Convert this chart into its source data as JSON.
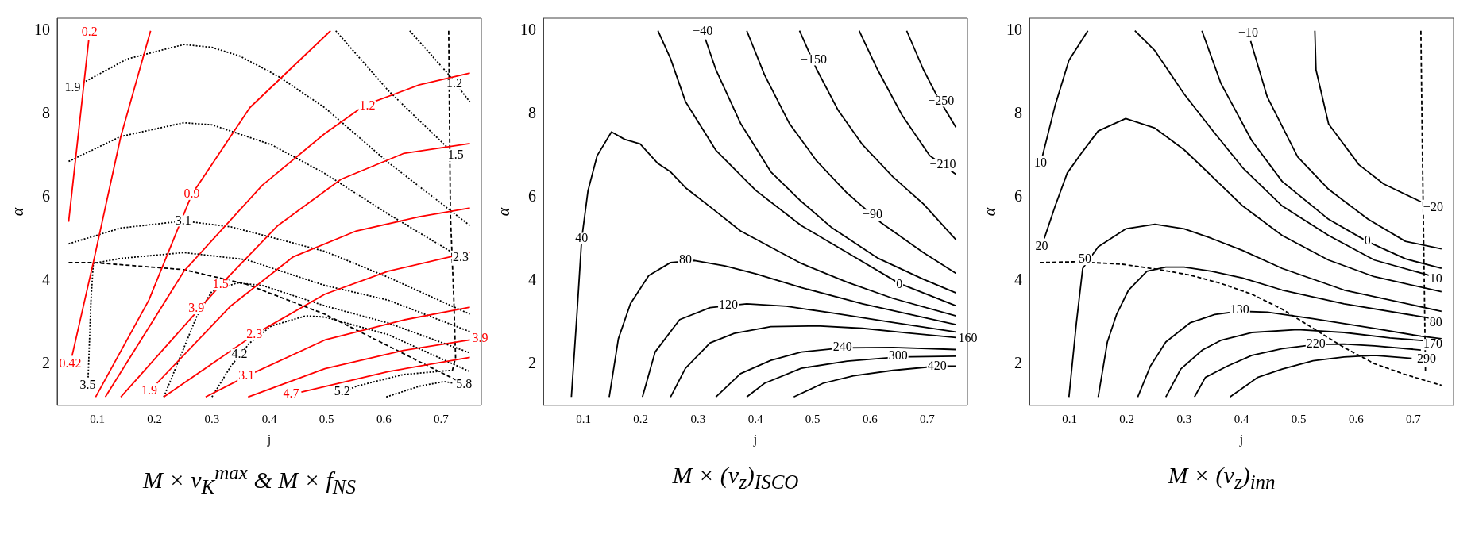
{
  "chart_data": [
    {
      "type": "line",
      "title": "M × ν$_{K}$$^{max}$ & M × f$_{NS}$",
      "xlabel": "j",
      "ylabel": "α",
      "xlim": [
        0.03,
        0.77
      ],
      "ylim": [
        1,
        10.3
      ],
      "xticks": [
        0.1,
        0.2,
        0.3,
        0.4,
        0.5,
        0.6,
        0.7
      ],
      "yticks": [
        2,
        4,
        6,
        8,
        10
      ],
      "series": [
        {
          "type": "line",
          "color": "#ff0000",
          "line_style": "solid",
          "x": [
            0.05,
            0.085
          ],
          "values": [
            5.41,
            9.77
          ]
        },
        {
          "type": "line",
          "color": "#ff0000",
          "line_style": "solid",
          "x": [
            0.056,
            0.093,
            0.141,
            0.193
          ],
          "values": [
            2.19,
            4.43,
            7.46,
            10
          ]
        },
        {
          "type": "line",
          "color": "#ff0000",
          "line_style": "solid",
          "x": [
            0.097,
            0.19,
            0.265,
            0.366,
            0.507
          ],
          "values": [
            1.2,
            3.53,
            6.07,
            8.15,
            10
          ]
        },
        {
          "type": "line",
          "color": "#ff0000",
          "line_style": "solid",
          "x": [
            0.114,
            0.251,
            0.388,
            0.497,
            0.568,
            0.662,
            0.75
          ],
          "values": [
            1.2,
            4.22,
            6.29,
            7.53,
            8.22,
            8.7,
            8.98
          ]
        },
        {
          "type": "line",
          "color": "#ff0000",
          "line_style": "solid",
          "x": [
            0.141,
            0.315,
            0.415,
            0.525,
            0.634,
            0.75
          ],
          "values": [
            1.2,
            3.89,
            5.32,
            6.43,
            7.05,
            7.29
          ]
        },
        {
          "type": "line",
          "color": "#ff0000",
          "line_style": "solid",
          "x": [
            0.204,
            0.333,
            0.442,
            0.552,
            0.662,
            0.75
          ],
          "values": [
            1.53,
            3.39,
            4.57,
            5.19,
            5.53,
            5.74
          ]
        },
        {
          "type": "line",
          "color": "#ff0000",
          "line_style": "solid",
          "x": [
            0.216,
            0.374,
            0.497,
            0.607,
            0.75
          ],
          "values": [
            1.2,
            2.7,
            3.67,
            4.22,
            4.68
          ]
        },
        {
          "type": "line",
          "color": "#ff0000",
          "line_style": "solid",
          "x": [
            0.289,
            0.36,
            0.497,
            0.634,
            0.75
          ],
          "values": [
            1.2,
            1.7,
            2.57,
            3.05,
            3.36
          ]
        },
        {
          "type": "line",
          "color": "#ff0000",
          "line_style": "solid",
          "x": [
            0.363,
            0.497,
            0.634,
            0.75
          ],
          "values": [
            1.2,
            1.88,
            2.32,
            2.57
          ]
        },
        {
          "type": "line",
          "color": "#ff0000",
          "line_style": "solid",
          "x": [
            0.456,
            0.607,
            0.75
          ],
          "values": [
            1.32,
            1.81,
            2.15
          ]
        },
        {
          "type": "line",
          "color": "#000000",
          "line_style": "dotted",
          "x": [
            0.645,
            0.711,
            0.75
          ],
          "values": [
            10,
            8.98,
            8.29
          ]
        },
        {
          "type": "line",
          "color": "#000000",
          "line_style": "dotted",
          "x": [
            0.516,
            0.607,
            0.711
          ],
          "values": [
            10,
            8.57,
            7.19
          ]
        },
        {
          "type": "line",
          "color": "#000000",
          "line_style": "dotted",
          "x": [
            0.075,
            0.152,
            0.251,
            0.3,
            0.349,
            0.415,
            0.497,
            0.607,
            0.75
          ],
          "values": [
            8.75,
            9.32,
            9.67,
            9.6,
            9.39,
            8.91,
            8.15,
            6.84,
            5.32
          ]
        },
        {
          "type": "line",
          "color": "#000000",
          "line_style": "dotted",
          "x": [
            0.05,
            0.141,
            0.251,
            0.3,
            0.404,
            0.497,
            0.607,
            0.716
          ],
          "values": [
            6.86,
            7.46,
            7.79,
            7.74,
            7.26,
            6.57,
            5.6,
            4.7
          ]
        },
        {
          "type": "line",
          "color": "#000000",
          "line_style": "dotted",
          "x": [
            0.05,
            0.141,
            0.251,
            0.333,
            0.497,
            0.607,
            0.75
          ],
          "values": [
            4.88,
            5.26,
            5.43,
            5.29,
            4.7,
            4.08,
            3.19
          ]
        },
        {
          "type": "line",
          "color": "#000000",
          "line_style": "dotted",
          "x": [
            0.084,
            0.089,
            0.093,
            0.141,
            0.251,
            0.36,
            0.497,
            0.607,
            0.75
          ],
          "values": [
            1.67,
            3.53,
            4.41,
            4.53,
            4.67,
            4.5,
            3.88,
            3.53,
            2.77
          ]
        },
        {
          "type": "line",
          "color": "#000000",
          "line_style": "dotted",
          "x": [
            0.216,
            0.273,
            0.3,
            0.344,
            0.388,
            0.497,
            0.607,
            0.75
          ],
          "values": [
            1.2,
            3.12,
            3.74,
            3.94,
            3.88,
            3.39,
            2.98,
            2.26
          ]
        },
        {
          "type": "line",
          "color": "#000000",
          "line_style": "dotted",
          "x": [
            0.3,
            0.333,
            0.366,
            0.404,
            0.464,
            0.497,
            0.607,
            0.75
          ],
          "values": [
            1.2,
            1.94,
            2.5,
            2.91,
            3.15,
            3.12,
            2.7,
            1.81
          ]
        },
        {
          "type": "line",
          "color": "#000000",
          "line_style": "dotted",
          "x": [
            0.514,
            0.552,
            0.634,
            0.716
          ],
          "values": [
            1.22,
            1.46,
            1.74,
            1.84
          ]
        },
        {
          "type": "line",
          "color": "#000000",
          "line_style": "dotted",
          "x": [
            0.604,
            0.662,
            0.705,
            0.722
          ],
          "values": [
            1.2,
            1.46,
            1.57,
            1.53
          ]
        },
        {
          "type": "line",
          "color": "#000000",
          "line_style": "dashed",
          "x": [
            0.05,
            0.093,
            0.251,
            0.36,
            0.497,
            0.607,
            0.727
          ],
          "values": [
            4.43,
            4.43,
            4.26,
            3.91,
            3.19,
            2.43,
            1.6
          ]
        },
        {
          "type": "line",
          "color": "#000000",
          "line_style": "dashed",
          "x": [
            0.713,
            0.716,
            0.722,
            0.725,
            0.719
          ],
          "values": [
            10,
            5.6,
            3.53,
            2.15,
            1.81
          ]
        }
      ],
      "annotations": [
        {
          "text": "0.2",
          "x": 0.085,
          "y": 9.77
        },
        {
          "text": "0.42",
          "x": 0.056,
          "y": 2.19
        },
        {
          "text": "0.9",
          "x": 0.265,
          "y": 6.07
        },
        {
          "text": "1.2",
          "x": 0.571,
          "y": 8.19
        },
        {
          "text": "1.5",
          "x": 0.315,
          "y": 3.89
        },
        {
          "text": "1.9",
          "x": 0.204,
          "y": 1.53
        },
        {
          "text": "2.3",
          "x": 0.374,
          "y": 2.7
        },
        {
          "text": "3.1",
          "x": 0.36,
          "y": 1.7
        },
        {
          "text": "3.9",
          "x": 0.75,
          "y": 2.57
        },
        {
          "text": "4.7",
          "x": 0.456,
          "y": 1.32
        },
        {
          "text": "1.9",
          "x": 0.075,
          "y": 8.75
        },
        {
          "text": "3.1",
          "x": 0.25,
          "y": 5.43
        },
        {
          "text": "3.5",
          "x": 0.084,
          "y": 1.67
        },
        {
          "text": "3.9",
          "x": 0.273,
          "y": 3.32
        },
        {
          "text": "4.2",
          "x": 0.348,
          "y": 2.22
        },
        {
          "text": "5.2",
          "x": 0.527,
          "y": 1.32
        },
        {
          "text": "5.8",
          "x": 0.722,
          "y": 1.53
        },
        {
          "text": "1.2",
          "x": 0.723,
          "y": 8.72
        },
        {
          "text": "1.5",
          "x": 0.711,
          "y": 7.19
        },
        {
          "text": "2.3",
          "x": 0.716,
          "y": 4.7
        }
      ]
    },
    {
      "type": "line",
      "title": "M × (ν$_{z}$)$_{ISCO}$",
      "xlabel": "j",
      "ylabel": "α",
      "xlim": [
        0.03,
        0.77
      ],
      "ylim": [
        1,
        10.3
      ],
      "xticks": [
        0.1,
        0.2,
        0.3,
        0.4,
        0.5,
        0.6,
        0.7
      ],
      "yticks": [
        2,
        4,
        6,
        8,
        10
      ],
      "series": [
        {
          "type": "line",
          "color": "#000000",
          "line_style": "solid",
          "x": [
            0.664,
            0.693,
            0.717,
            0.75
          ],
          "values": [
            10,
            9.07,
            8.43,
            7.68
          ]
        },
        {
          "type": "line",
          "color": "#000000",
          "line_style": "solid",
          "x": [
            0.581,
            0.613,
            0.656,
            0.704,
            0.75
          ],
          "values": [
            10,
            9.07,
            7.97,
            7.0,
            6.55
          ]
        },
        {
          "type": "line",
          "color": "#000000",
          "line_style": "solid",
          "x": [
            0.477,
            0.507,
            0.544,
            0.587,
            0.64,
            0.693,
            0.75
          ],
          "values": [
            10,
            9.07,
            8.1,
            7.26,
            6.49,
            5.84,
            4.98
          ]
        },
        {
          "type": "line",
          "color": "#000000",
          "line_style": "solid",
          "x": [
            0.385,
            0.416,
            0.459,
            0.507,
            0.56,
            0.619,
            0.693,
            0.75
          ],
          "values": [
            10,
            8.94,
            7.78,
            6.87,
            6.1,
            5.39,
            4.67,
            4.17
          ]
        },
        {
          "type": "line",
          "color": "#000000",
          "line_style": "solid",
          "x": [
            0.313,
            0.331,
            0.374,
            0.427,
            0.48,
            0.534,
            0.613,
            0.693,
            0.75
          ],
          "values": [
            9.79,
            9.07,
            7.78,
            6.61,
            5.9,
            5.26,
            4.54,
            4.03,
            3.7
          ]
        },
        {
          "type": "line",
          "color": "#000000",
          "line_style": "solid",
          "x": [
            0.23,
            0.252,
            0.278,
            0.331,
            0.401,
            0.48,
            0.56,
            0.651,
            0.75
          ],
          "values": [
            10,
            9.33,
            8.3,
            7.13,
            6.16,
            5.32,
            4.67,
            3.93,
            3.39
          ]
        },
        {
          "type": "line",
          "color": "#000000",
          "line_style": "solid",
          "x": [
            0.079,
            0.089,
            0.097,
            0.108,
            0.124,
            0.149,
            0.172,
            0.199,
            0.23,
            0.252,
            0.278,
            0.321,
            0.374,
            0.427,
            0.48,
            0.56,
            0.64,
            0.75
          ],
          "values": [
            1.2,
            3.25,
            5.0,
            6.16,
            7.0,
            7.57,
            7.39,
            7.28,
            6.81,
            6.61,
            6.23,
            5.77,
            5.19,
            4.8,
            4.41,
            3.96,
            3.57,
            3.15
          ]
        },
        {
          "type": "line",
          "color": "#000000",
          "line_style": "solid",
          "x": [
            0.145,
            0.161,
            0.182,
            0.214,
            0.252,
            0.294,
            0.347,
            0.401,
            0.48,
            0.587,
            0.75
          ],
          "values": [
            1.2,
            2.6,
            3.44,
            4.12,
            4.43,
            4.48,
            4.35,
            4.16,
            3.83,
            3.44,
            2.94
          ]
        },
        {
          "type": "line",
          "color": "#000000",
          "line_style": "solid",
          "x": [
            0.203,
            0.225,
            0.268,
            0.321,
            0.385,
            0.454,
            0.534,
            0.64,
            0.75
          ],
          "values": [
            1.2,
            2.28,
            3.06,
            3.35,
            3.44,
            3.38,
            3.22,
            2.99,
            2.76
          ]
        },
        {
          "type": "line",
          "color": "#000000",
          "line_style": "solid",
          "x": [
            0.252,
            0.278,
            0.321,
            0.363,
            0.427,
            0.507,
            0.587,
            0.666,
            0.75
          ],
          "values": [
            1.2,
            1.89,
            2.5,
            2.73,
            2.89,
            2.91,
            2.85,
            2.74,
            2.63
          ]
        },
        {
          "type": "line",
          "color": "#000000",
          "line_style": "solid",
          "x": [
            0.331,
            0.374,
            0.427,
            0.48,
            0.552,
            0.64,
            0.75
          ],
          "values": [
            1.2,
            1.76,
            2.08,
            2.28,
            2.38,
            2.39,
            2.34
          ]
        },
        {
          "type": "line",
          "color": "#000000",
          "line_style": "solid",
          "x": [
            0.385,
            0.416,
            0.48,
            0.56,
            0.649,
            0.75
          ],
          "values": [
            1.2,
            1.53,
            1.89,
            2.06,
            2.16,
            2.18
          ]
        },
        {
          "type": "line",
          "color": "#000000",
          "line_style": "solid",
          "x": [
            0.467,
            0.518,
            0.571,
            0.64,
            0.717,
            0.75
          ],
          "values": [
            1.2,
            1.53,
            1.71,
            1.84,
            1.94,
            1.94
          ]
        }
      ],
      "annotations": [
        {
          "text": "−40",
          "x": 0.313,
          "y": 9.79
        },
        {
          "text": "−150",
          "x": 0.502,
          "y": 9.3
        },
        {
          "text": "−250",
          "x": 0.724,
          "y": 8.31
        },
        {
          "text": "−210",
          "x": 0.727,
          "y": 6.775
        },
        {
          "text": "−90",
          "x": 0.60425,
          "y": 5.5675
        },
        {
          "text": "0",
          "x": 0.651,
          "y": 3.9
        },
        {
          "text": "40",
          "x": 0.097,
          "y": 5.01
        },
        {
          "text": "80",
          "x": 0.278,
          "y": 4.49
        },
        {
          "text": "120",
          "x": 0.353,
          "y": 3.395
        },
        {
          "text": "160",
          "x": 0.75,
          "y": 2.63
        },
        {
          "text": "240",
          "x": 0.552,
          "y": 2.39
        },
        {
          "text": "300",
          "x": 0.649,
          "y": 2.18
        },
        {
          "text": "420",
          "x": 0.717,
          "y": 1.94
        }
      ]
    },
    {
      "type": "line",
      "title": "M × (ν$_{z}$)$_{inn}$",
      "xlabel": "j",
      "ylabel": "α",
      "xlim": [
        0.03,
        0.77
      ],
      "ylim": [
        1,
        10.3
      ],
      "xticks": [
        0.1,
        0.2,
        0.3,
        0.4,
        0.5,
        0.6,
        0.7
      ],
      "yticks": [
        2,
        4,
        6,
        8,
        10
      ],
      "series": [
        {
          "type": "line",
          "color": "#000000",
          "line_style": "solid",
          "x": [
            0.528,
            0.53,
            0.552,
            0.605,
            0.648,
            0.713
          ],
          "values": [
            10,
            9.06,
            7.76,
            6.78,
            6.32,
            5.89
          ]
        },
        {
          "type": "line",
          "color": "#000000",
          "line_style": "solid",
          "x": [
            0.416,
            0.445,
            0.498,
            0.552,
            0.621,
            0.686,
            0.749
          ],
          "values": [
            9.75,
            8.41,
            6.97,
            6.19,
            5.47,
            4.94,
            4.76
          ]
        },
        {
          "type": "line",
          "color": "#000000",
          "line_style": "solid",
          "x": [
            0.331,
            0.364,
            0.418,
            0.471,
            0.552,
            0.619,
            0.686,
            0.749
          ],
          "values": [
            10,
            8.74,
            7.36,
            6.38,
            5.47,
            4.94,
            4.52,
            4.29
          ]
        },
        {
          "type": "line",
          "color": "#000000",
          "line_style": "solid",
          "x": [
            0.214,
            0.249,
            0.3,
            0.348,
            0.402,
            0.471,
            0.552,
            0.632,
            0.749
          ],
          "values": [
            10,
            9.52,
            8.48,
            7.63,
            6.71,
            5.79,
            5.08,
            4.49,
            4.04
          ]
        },
        {
          "type": "line",
          "color": "#000000",
          "line_style": "solid",
          "x": [
            0.053,
            0.075,
            0.099,
            0.132
          ],
          "values": [
            7.0,
            8.21,
            9.29,
            10
          ]
        },
        {
          "type": "line",
          "color": "#000000",
          "line_style": "solid",
          "x": [
            0.056,
            0.075,
            0.096,
            0.123,
            0.15,
            0.198,
            0.249,
            0.3,
            0.348,
            0.402,
            0.471,
            0.552,
            0.632,
            0.749
          ],
          "values": [
            5.01,
            5.79,
            6.58,
            7.1,
            7.59,
            7.89,
            7.66,
            7.14,
            6.51,
            5.79,
            5.08,
            4.49,
            4.09,
            3.73
          ]
        },
        {
          "type": "line",
          "color": "#000000",
          "line_style": "solid",
          "x": [
            0.099,
            0.112,
            0.123,
            0.15,
            0.198,
            0.249,
            0.3,
            0.348,
            0.402,
            0.471,
            0.579,
            0.749
          ],
          "values": [
            1.2,
            2.98,
            4.29,
            4.81,
            5.24,
            5.35,
            5.24,
            5.01,
            4.72,
            4.29,
            3.77,
            3.26
          ]
        },
        {
          "type": "line",
          "color": "#000000",
          "line_style": "solid",
          "x": [
            0.15,
            0.166,
            0.182,
            0.203,
            0.235,
            0.268,
            0.3,
            0.348,
            0.402,
            0.471,
            0.579,
            0.749
          ],
          "values": [
            1.2,
            2.52,
            3.18,
            3.77,
            4.22,
            4.32,
            4.32,
            4.22,
            4.06,
            3.77,
            3.44,
            3.05
          ]
        },
        {
          "type": "line",
          "color": "#000000",
          "line_style": "solid",
          "x": [
            0.219,
            0.241,
            0.268,
            0.31,
            0.353,
            0.396,
            0.445,
            0.525,
            0.632,
            0.713,
            0.749
          ],
          "values": [
            1.2,
            1.94,
            2.52,
            2.98,
            3.18,
            3.26,
            3.24,
            3.08,
            2.85,
            2.66,
            2.6
          ]
        },
        {
          "type": "line",
          "color": "#000000",
          "line_style": "solid",
          "x": [
            0.268,
            0.294,
            0.332,
            0.364,
            0.418,
            0.498,
            0.579,
            0.659,
            0.749
          ],
          "values": [
            1.2,
            1.87,
            2.33,
            2.56,
            2.75,
            2.82,
            2.75,
            2.62,
            2.52
          ]
        },
        {
          "type": "line",
          "color": "#000000",
          "line_style": "solid",
          "x": [
            0.318,
            0.337,
            0.375,
            0.418,
            0.471,
            0.53,
            0.579,
            0.632,
            0.713
          ],
          "values": [
            1.2,
            1.67,
            1.94,
            2.2,
            2.36,
            2.46,
            2.47,
            2.43,
            2.33
          ]
        },
        {
          "type": "line",
          "color": "#000000",
          "line_style": "solid",
          "x": [
            0.38,
            0.428,
            0.471,
            0.525,
            0.579,
            0.632,
            0.697
          ],
          "values": [
            1.2,
            1.67,
            1.87,
            2.07,
            2.16,
            2.2,
            2.13
          ]
        },
        {
          "type": "line",
          "color": "#000000",
          "line_style": "dashed",
          "x": [
            0.048,
            0.112,
            0.192,
            0.257,
            0.31,
            0.364,
            0.418,
            0.471,
            0.525,
            0.579,
            0.632,
            0.686,
            0.749
          ],
          "values": [
            4.43,
            4.45,
            4.39,
            4.26,
            4.13,
            3.93,
            3.67,
            3.31,
            2.85,
            2.39,
            2.0,
            1.74,
            1.48
          ]
        },
        {
          "type": "line",
          "color": "#000000",
          "line_style": "dashed",
          "x": [
            0.713,
            0.715,
            0.719,
            0.721
          ],
          "values": [
            10,
            7.76,
            3.83,
            1.81
          ]
        }
      ],
      "annotations": [
        {
          "text": "10",
          "x": 0.053,
          "y": 7.0
        },
        {
          "text": "20",
          "x": 0.056,
          "y": 5.01
        },
        {
          "text": "50",
          "x": 0.127,
          "y": 4.5
        },
        {
          "text": "−10",
          "x": 0.416,
          "y": 9.75
        },
        {
          "text": "−20",
          "x": 0.713,
          "y": 5.89
        },
        {
          "text": "0",
          "x": 0.62,
          "y": 4.94
        },
        {
          "text": "10",
          "x": 0.739,
          "y": 4.03
        },
        {
          "text": "80",
          "x": 0.739,
          "y": 2.98
        },
        {
          "text": "130",
          "x": 0.397,
          "y": 3.28
        },
        {
          "text": "170",
          "x": 0.734,
          "y": 2.46
        },
        {
          "text": "220",
          "x": 0.53,
          "y": 2.46
        },
        {
          "text": "290",
          "x": 0.723,
          "y": 2.1
        }
      ]
    }
  ]
}
